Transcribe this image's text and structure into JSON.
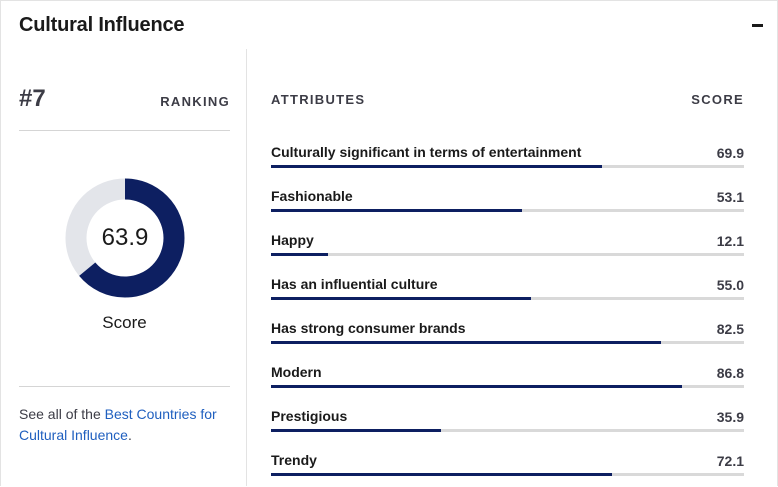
{
  "header": {
    "title": "Cultural Influence"
  },
  "ranking": {
    "value": "#7",
    "label": "RANKING"
  },
  "score": {
    "value": "63.9",
    "fraction": 0.639,
    "caption": "Score"
  },
  "see_all": {
    "prefix": "See all of the ",
    "link": "Best Countries for Cultural Influence",
    "suffix": "."
  },
  "columns": {
    "attributes": "ATTRIBUTES",
    "score": "SCORE"
  },
  "colors": {
    "accent": "#0d1f61",
    "track": "#d9d9d9",
    "donut_track": "#e3e5ea",
    "link": "#1f5fbf"
  },
  "attributes": [
    {
      "name": "Culturally significant in terms of entertainment",
      "score": "69.9",
      "value": 69.9
    },
    {
      "name": "Fashionable",
      "score": "53.1",
      "value": 53.1
    },
    {
      "name": "Happy",
      "score": "12.1",
      "value": 12.1
    },
    {
      "name": "Has an influential culture",
      "score": "55.0",
      "value": 55.0
    },
    {
      "name": "Has strong consumer brands",
      "score": "82.5",
      "value": 82.5
    },
    {
      "name": "Modern",
      "score": "86.8",
      "value": 86.8
    },
    {
      "name": "Prestigious",
      "score": "35.9",
      "value": 35.9
    },
    {
      "name": "Trendy",
      "score": "72.1",
      "value": 72.1
    }
  ]
}
